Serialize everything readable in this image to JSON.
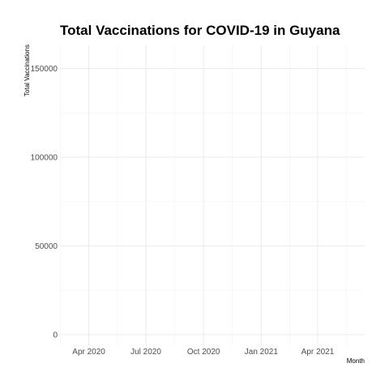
{
  "chart_data": {
    "type": "line",
    "title": "Total Vaccinations for COVID-19 in Guyana",
    "xlabel": "Month",
    "ylabel": "Total Vaccinations",
    "x_ticks": [
      "Apr 2020",
      "Jul 2020",
      "Oct 2020",
      "Jan 2021",
      "Apr 2021"
    ],
    "x_tick_dates": [
      "2020-04-01",
      "2020-07-01",
      "2020-10-01",
      "2021-01-01",
      "2021-04-01"
    ],
    "xlim": [
      "2020-02-15",
      "2021-06-15"
    ],
    "y_ticks": [
      0,
      50000,
      100000,
      150000
    ],
    "ylim": [
      -6000,
      163000
    ],
    "grid": true,
    "series": []
  }
}
